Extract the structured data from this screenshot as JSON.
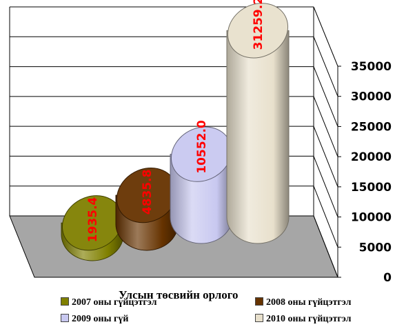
{
  "chart_data": {
    "type": "bar",
    "style": "3d-cylinder",
    "title": "",
    "xlabel": "Улсын төсвийн орлого",
    "ylabel": "",
    "ylim": [
      0,
      35000
    ],
    "ytick_step": 5000,
    "yticks": [
      "0",
      "5000",
      "10000",
      "15000",
      "20000",
      "25000",
      "30000",
      "35000"
    ],
    "grid": true,
    "legend_position": "bottom",
    "series": [
      {
        "name": "2007 оны гүйцэтгэл",
        "value": 1935.4,
        "label": "1935.4",
        "color": "#808000"
      },
      {
        "name": "2008 оны гүйцэтгэл",
        "value": 4835.8,
        "label": "4835.8",
        "color": "#663300"
      },
      {
        "name": "2009 оны гүй",
        "value": 10552.0,
        "label": "10552.0",
        "color": "#c8c8f0"
      },
      {
        "name": "2010 оны гүйцэтгэл",
        "value": 31259.2,
        "label": "31259.2",
        "color": "#e8e0cc"
      }
    ],
    "label_color": "#ff0000"
  }
}
